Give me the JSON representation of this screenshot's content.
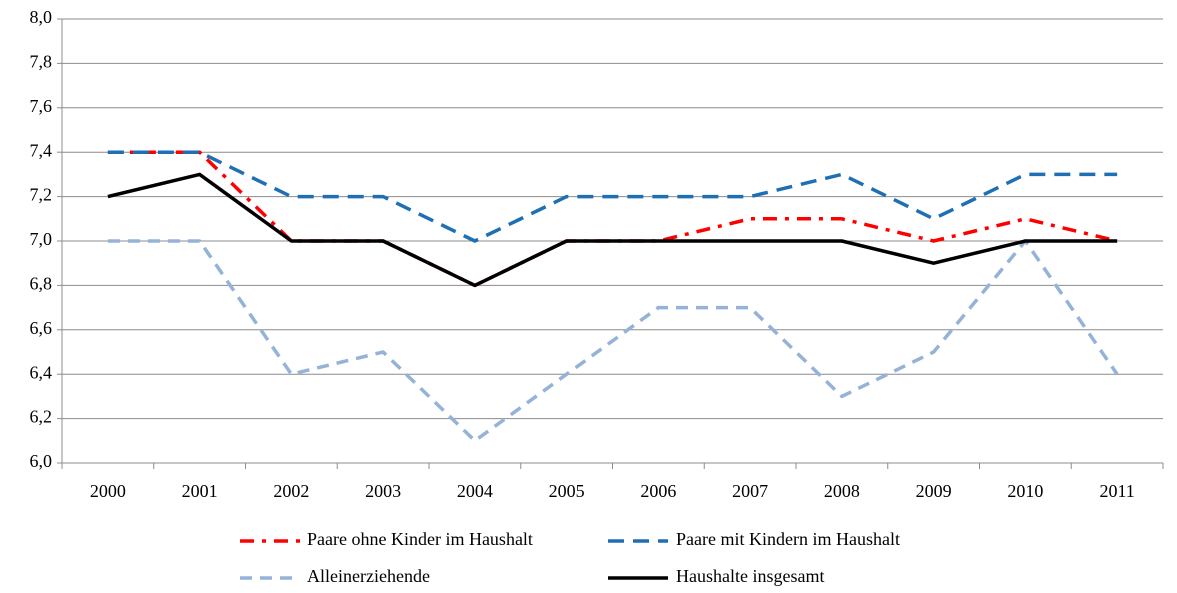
{
  "chart_data": {
    "type": "line",
    "categories": [
      "2000",
      "2001",
      "2002",
      "2003",
      "2004",
      "2005",
      "2006",
      "2007",
      "2008",
      "2009",
      "2010",
      "2011"
    ],
    "series": [
      {
        "name": "Paare ohne Kinder im Haushalt",
        "color": "#ff0000",
        "values": [
          7.4,
          7.4,
          7.0,
          7.0,
          6.8,
          7.0,
          7.0,
          7.1,
          7.1,
          7.0,
          7.1,
          7.0
        ]
      },
      {
        "name": "Paare mit Kindern im Haushalt",
        "color": "#1f6fb4",
        "values": [
          7.4,
          7.4,
          7.2,
          7.2,
          7.0,
          7.2,
          7.2,
          7.2,
          7.3,
          7.1,
          7.3,
          7.3
        ]
      },
      {
        "name": "Alleinerziehende",
        "color": "#95b3d7",
        "values": [
          7.0,
          7.0,
          6.4,
          6.5,
          6.1,
          6.4,
          6.7,
          6.7,
          6.3,
          6.5,
          7.0,
          6.4
        ]
      },
      {
        "name": "Haushalte insgesamt",
        "color": "#000000",
        "values": [
          7.2,
          7.3,
          7.0,
          7.0,
          6.8,
          7.0,
          7.0,
          7.0,
          7.0,
          6.9,
          7.0,
          7.0
        ]
      }
    ],
    "ylim": [
      6.0,
      8.0
    ],
    "yticks": [
      {
        "value": 6.0,
        "label": "6,0"
      },
      {
        "value": 6.2,
        "label": "6,2"
      },
      {
        "value": 6.4,
        "label": "6,4"
      },
      {
        "value": 6.6,
        "label": "6,6"
      },
      {
        "value": 6.8,
        "label": "6,8"
      },
      {
        "value": 7.0,
        "label": "7,0"
      },
      {
        "value": 7.2,
        "label": "7,2"
      },
      {
        "value": 7.4,
        "label": "7,4"
      },
      {
        "value": 7.6,
        "label": "7,6"
      },
      {
        "value": 7.8,
        "label": "7,8"
      },
      {
        "value": 8.0,
        "label": "8,0"
      }
    ],
    "grid": true,
    "legend": "bottom"
  }
}
